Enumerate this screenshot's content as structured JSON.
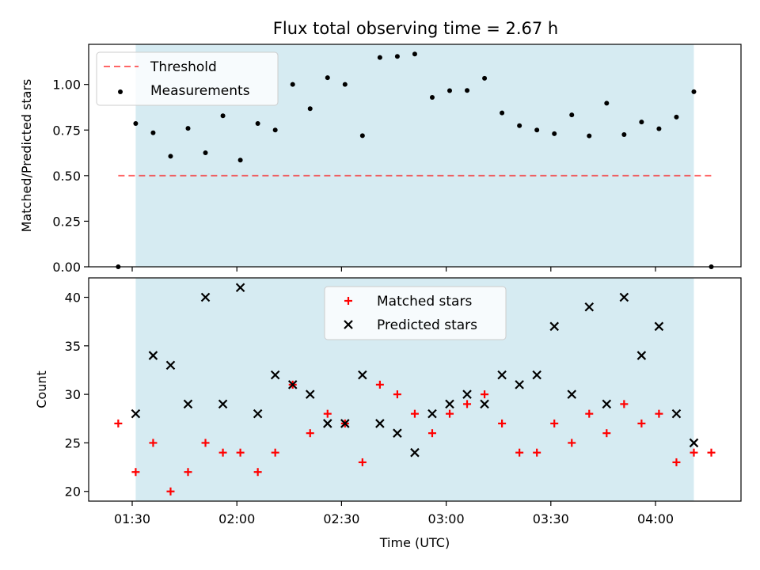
{
  "title": "Flux total observing time = 2.67 h",
  "colors": {
    "shade": "#add8e6",
    "threshold": "#ff0000",
    "measurement": "#000000",
    "matched": "#ff0000",
    "predicted": "#000000"
  },
  "chart_data": [
    {
      "type": "scatter",
      "panel": "top",
      "ylabel": "Matched/Predicted stars",
      "ylim": [
        0,
        1.22
      ],
      "yticks": [
        0,
        0.25,
        0.5,
        0.75,
        1.0
      ],
      "ytick_labels": [
        "0.00",
        "0.25",
        "0.50",
        "0.75",
        "1.00"
      ],
      "shaded_span": [
        "01:31",
        "04:11"
      ],
      "legend": {
        "position": "upper-left",
        "entries": [
          "Threshold",
          "Measurements"
        ]
      },
      "threshold": {
        "name": "Threshold",
        "value": 0.5,
        "x_range": [
          "01:26",
          "04:16"
        ],
        "style": "dashed"
      },
      "series": [
        {
          "name": "Measurements",
          "x": [
            "01:26",
            "01:31",
            "01:36",
            "01:41",
            "01:46",
            "01:51",
            "01:56",
            "02:01",
            "02:06",
            "02:11",
            "02:16",
            "02:21",
            "02:26",
            "02:31",
            "02:36",
            "02:41",
            "02:46",
            "02:51",
            "02:56",
            "03:01",
            "03:06",
            "03:11",
            "03:16",
            "03:21",
            "03:26",
            "03:31",
            "03:36",
            "03:41",
            "03:46",
            "03:51",
            "03:56",
            "04:01",
            "04:06",
            "04:11",
            "04:16"
          ],
          "y": [
            0.0,
            0.786,
            0.735,
            0.606,
            0.759,
            0.625,
            0.828,
            0.585,
            0.786,
            0.75,
            1.0,
            0.867,
            1.037,
            1.0,
            0.719,
            1.148,
            1.154,
            1.167,
            0.929,
            0.966,
            0.967,
            1.034,
            0.844,
            0.774,
            0.75,
            0.73,
            0.833,
            0.718,
            0.897,
            0.725,
            0.794,
            0.757,
            0.821,
            0.96,
            0.0
          ]
        }
      ]
    },
    {
      "type": "scatter",
      "panel": "bottom",
      "xlabel": "Time (UTC)",
      "ylabel": "Count",
      "ylim": [
        19,
        42
      ],
      "yticks": [
        20,
        25,
        30,
        35,
        40
      ],
      "xticks": [
        "01:30",
        "02:00",
        "02:30",
        "03:00",
        "03:30",
        "04:00"
      ],
      "shaded_span": [
        "01:31",
        "04:11"
      ],
      "legend": {
        "position": "upper-center",
        "entries": [
          "Matched stars",
          "Predicted stars"
        ]
      },
      "series": [
        {
          "name": "Matched stars",
          "marker": "plus",
          "x": [
            "01:26",
            "01:31",
            "01:36",
            "01:41",
            "01:46",
            "01:51",
            "01:56",
            "02:01",
            "02:06",
            "02:11",
            "02:16",
            "02:21",
            "02:26",
            "02:31",
            "02:36",
            "02:41",
            "02:46",
            "02:51",
            "02:56",
            "03:01",
            "03:06",
            "03:11",
            "03:16",
            "03:21",
            "03:26",
            "03:31",
            "03:36",
            "03:41",
            "03:46",
            "03:51",
            "03:56",
            "04:01",
            "04:06",
            "04:11",
            "04:16"
          ],
          "y": [
            27,
            22,
            25,
            20,
            22,
            25,
            24,
            24,
            22,
            24,
            31,
            26,
            28,
            27,
            23,
            31,
            30,
            28,
            26,
            28,
            29,
            30,
            27,
            24,
            24,
            27,
            25,
            28,
            26,
            29,
            27,
            28,
            23,
            24,
            24
          ]
        },
        {
          "name": "Predicted stars",
          "marker": "x",
          "x": [
            "01:31",
            "01:36",
            "01:41",
            "01:46",
            "01:51",
            "01:56",
            "02:01",
            "02:06",
            "02:11",
            "02:16",
            "02:21",
            "02:26",
            "02:31",
            "02:36",
            "02:41",
            "02:46",
            "02:51",
            "02:56",
            "03:01",
            "03:06",
            "03:11",
            "03:16",
            "03:21",
            "03:26",
            "03:31",
            "03:36",
            "03:41",
            "03:46",
            "03:51",
            "03:56",
            "04:01",
            "04:06",
            "04:11"
          ],
          "y": [
            28,
            34,
            33,
            29,
            40,
            29,
            41,
            28,
            32,
            31,
            30,
            27,
            27,
            32,
            27,
            26,
            24,
            28,
            29,
            30,
            29,
            32,
            31,
            32,
            37,
            30,
            39,
            29,
            40,
            34,
            37,
            28,
            25
          ]
        }
      ]
    }
  ]
}
